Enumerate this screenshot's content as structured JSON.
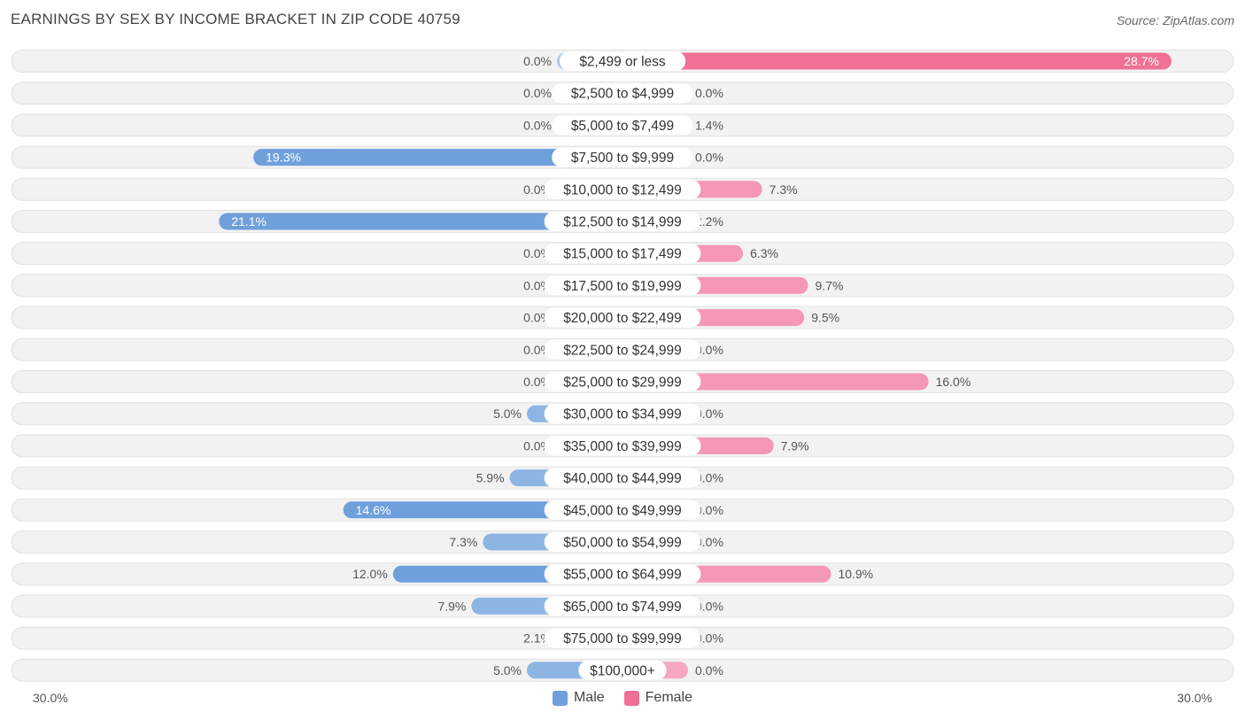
{
  "title": "EARNINGS BY SEX BY INCOME BRACKET IN ZIP CODE 40759",
  "source": "Source: ZipAtlas.com",
  "colors": {
    "male": "#6fa0dc",
    "male_light": "#a9c6ea",
    "female": "#f07096",
    "female_light": "#f6a8c0",
    "row_bg": "#f2f2f2",
    "row_border": "#e2e2e2"
  },
  "legend": {
    "male": "Male",
    "female": "Female"
  },
  "axis": {
    "left_label": "30.0%",
    "right_label": "30.0%"
  },
  "chart_data": {
    "type": "bar",
    "orientation": "horizontal-diverging",
    "title": "EARNINGS BY SEX BY INCOME BRACKET IN ZIP CODE 40759",
    "xlim": [
      -30,
      30
    ],
    "categories": [
      "$2,499 or less",
      "$2,500 to $4,999",
      "$5,000 to $7,499",
      "$7,500 to $9,999",
      "$10,000 to $12,499",
      "$12,500 to $14,999",
      "$15,000 to $17,499",
      "$17,500 to $19,999",
      "$20,000 to $22,499",
      "$22,500 to $24,999",
      "$25,000 to $29,999",
      "$30,000 to $34,999",
      "$35,000 to $39,999",
      "$40,000 to $44,999",
      "$45,000 to $49,999",
      "$50,000 to $54,999",
      "$55,000 to $64,999",
      "$65,000 to $74,999",
      "$75,000 to $99,999",
      "$100,000+"
    ],
    "series": [
      {
        "name": "Male",
        "values": [
          0.0,
          0.0,
          0.0,
          19.3,
          0.0,
          21.1,
          0.0,
          0.0,
          0.0,
          0.0,
          0.0,
          5.0,
          0.0,
          5.9,
          14.6,
          7.3,
          12.0,
          7.9,
          2.1,
          5.0
        ],
        "labels": [
          "0.0%",
          "0.0%",
          "0.0%",
          "19.3%",
          "0.0%",
          "21.1%",
          "0.0%",
          "0.0%",
          "0.0%",
          "0.0%",
          "0.0%",
          "5.0%",
          "0.0%",
          "5.9%",
          "14.6%",
          "7.3%",
          "12.0%",
          "7.9%",
          "2.1%",
          "5.0%"
        ]
      },
      {
        "name": "Female",
        "values": [
          28.7,
          0.0,
          1.4,
          0.0,
          7.3,
          2.2,
          6.3,
          9.7,
          9.5,
          0.0,
          16.0,
          0.0,
          7.9,
          0.0,
          0.0,
          0.0,
          10.9,
          0.0,
          0.0,
          0.0
        ],
        "labels": [
          "28.7%",
          "0.0%",
          "1.4%",
          "0.0%",
          "7.3%",
          "2.2%",
          "6.3%",
          "9.7%",
          "9.5%",
          "0.0%",
          "16.0%",
          "0.0%",
          "7.9%",
          "0.0%",
          "0.0%",
          "0.0%",
          "10.9%",
          "0.0%",
          "0.0%",
          "0.0%"
        ]
      }
    ]
  }
}
